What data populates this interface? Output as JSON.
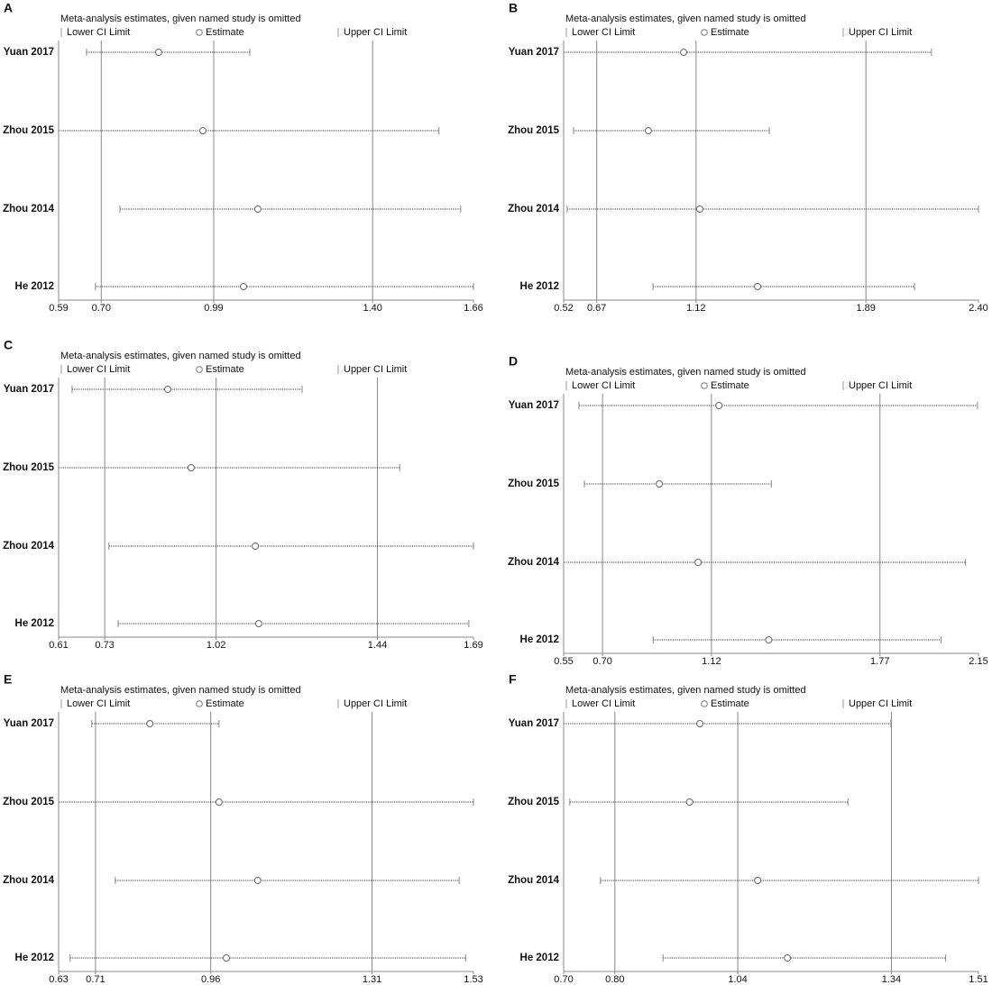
{
  "chart_data": [
    {
      "type": "forest",
      "label": "A",
      "title": "Meta-analysis estimates, given named study is omitted",
      "legend": {
        "lower": "Lower CI Limit",
        "estimate": "Estimate",
        "upper": "Upper CI Limit"
      },
      "categories": [
        "Yuan 2017",
        "Zhou 2015",
        "Zhou 2014",
        "He 2012"
      ],
      "lower": [
        0.662,
        0.59,
        0.748,
        0.685
      ],
      "estimate": [
        0.848,
        0.962,
        1.104,
        1.067
      ],
      "upper": [
        1.083,
        1.571,
        1.627,
        1.66
      ],
      "xlim": [
        0.59,
        1.66
      ],
      "xticks": [
        0.59,
        {
          "value": 0.7,
          "label": "0.70"
        },
        0.99,
        {
          "value": 1.4,
          "label": "1.40"
        },
        1.66
      ]
    },
    {
      "type": "forest",
      "label": "B",
      "title": "Meta-analysis estimates, given named study is omitted",
      "legend": {
        "lower": "Lower CI Limit",
        "estimate": "Estimate",
        "upper": "Upper CI Limit"
      },
      "categories": [
        "Yuan 2017",
        "Zhou 2015",
        "Zhou 2014",
        "He 2012"
      ],
      "lower": [
        0.52,
        0.565,
        0.536,
        0.925
      ],
      "estimate": [
        1.064,
        0.904,
        1.137,
        1.399
      ],
      "upper": [
        2.187,
        1.452,
        2.4,
        2.11
      ],
      "xlim": [
        0.52,
        2.4
      ],
      "xticks": [
        0.52,
        0.67,
        1.12,
        1.89,
        {
          "value": 2.4,
          "label": "2.40"
        }
      ]
    },
    {
      "type": "forest",
      "label": "C",
      "title": "Meta-analysis estimates, given named study is omitted",
      "legend": {
        "lower": "Lower CI Limit",
        "estimate": "Estimate",
        "upper": "Upper CI Limit"
      },
      "categories": [
        "Yuan 2017",
        "Zhou 2015",
        "Zhou 2014",
        "He 2012"
      ],
      "lower": [
        0.645,
        0.61,
        0.741,
        0.765
      ],
      "estimate": [
        0.894,
        0.955,
        1.122,
        1.131
      ],
      "upper": [
        1.244,
        1.498,
        1.69,
        1.678
      ],
      "xlim": [
        0.61,
        1.69
      ],
      "xticks": [
        0.61,
        0.73,
        1.02,
        1.44,
        1.69
      ]
    },
    {
      "type": "forest",
      "label": "D",
      "title": "Meta-analysis estimates, given named study is omitted",
      "legend": {
        "lower": "Lower CI Limit",
        "estimate": "Estimate",
        "upper": "Upper CI Limit"
      },
      "categories": [
        "Yuan 2017",
        "Zhou 2015",
        "Zhou 2014",
        "He 2012"
      ],
      "lower": [
        0.609,
        0.63,
        0.55,
        0.895
      ],
      "estimate": [
        1.149,
        0.919,
        1.069,
        1.341
      ],
      "upper": [
        2.146,
        1.351,
        2.1,
        2.006
      ],
      "xlim": [
        0.55,
        2.15
      ],
      "xticks": [
        0.55,
        {
          "value": 0.7,
          "label": "0.70"
        },
        1.12,
        1.77,
        2.15
      ]
    },
    {
      "type": "forest",
      "label": "E",
      "title": "Meta-analysis estimates, given named study is omitted",
      "legend": {
        "lower": "Lower CI Limit",
        "estimate": "Estimate",
        "upper": "Upper CI Limit"
      },
      "categories": [
        "Yuan 2017",
        "Zhou 2015",
        "Zhou 2014",
        "He 2012"
      ],
      "lower": [
        0.702,
        0.63,
        0.753,
        0.655
      ],
      "estimate": [
        0.828,
        0.978,
        1.062,
        0.994
      ],
      "upper": [
        0.978,
        1.53,
        1.499,
        1.513
      ],
      "xlim": [
        0.63,
        1.53
      ],
      "xticks": [
        0.63,
        0.71,
        0.96,
        1.31,
        1.53
      ]
    },
    {
      "type": "forest",
      "label": "F",
      "title": "Meta-analysis estimates, given named study is omitted",
      "legend": {
        "lower": "Lower CI Limit",
        "estimate": "Estimate",
        "upper": "Upper CI Limit"
      },
      "categories": [
        "Yuan 2017",
        "Zhou 2015",
        "Zhou 2014",
        "He 2012"
      ],
      "lower": [
        0.7,
        0.712,
        0.772,
        0.894
      ],
      "estimate": [
        0.966,
        0.946,
        1.079,
        1.137
      ],
      "upper": [
        1.339,
        1.255,
        1.51,
        1.446
      ],
      "xlim": [
        {
          "value": 0.7,
          "label": "0.70"
        },
        1.51
      ],
      "xticks": [
        {
          "value": 0.7,
          "label": "0.70"
        },
        {
          "value": 0.8,
          "label": "0.80"
        },
        1.04,
        1.34,
        1.51
      ]
    }
  ]
}
